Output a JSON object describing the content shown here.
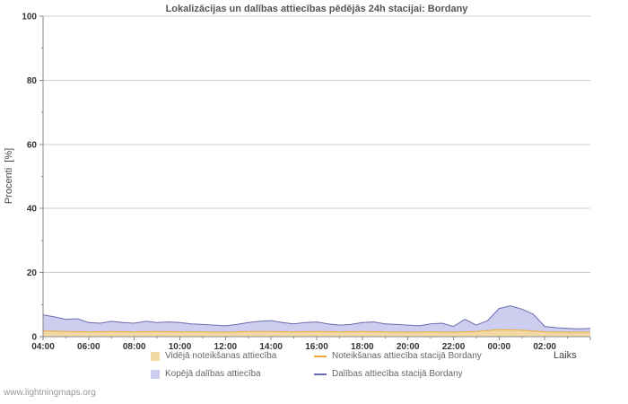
{
  "page": {
    "watermark": "www.lightningmaps.org"
  },
  "chart_data": {
    "type": "area",
    "title": "Lokalizācijas un dalības attiecības pēdējās 24h stacijai: Bordany",
    "xlabel": "Laiks",
    "ylabel": "Procenti  [%]",
    "ylim": [
      0,
      100
    ],
    "y_ticks": [
      0,
      20,
      40,
      60,
      80,
      100
    ],
    "x_labels": [
      "04:00",
      "06:00",
      "08:00",
      "10:00",
      "12:00",
      "14:00",
      "16:00",
      "18:00",
      "20:00",
      "22:00",
      "00:00",
      "02:00"
    ],
    "grid": true,
    "legend_position": "bottom",
    "colors": {
      "grid": "#cccccc",
      "axis": "#888888",
      "tick_text": "#333333",
      "title": "#555555",
      "axis_title": "#444444",
      "legend_text": "#666666",
      "watermark": "#999999"
    },
    "series": [
      {
        "id": "avg-detection-ratio",
        "name": "Vidējā noteikšanas attiecība",
        "type": "area",
        "color": "#f2d9a4",
        "values": [
          1.8,
          1.6,
          1.5,
          1.6,
          1.5,
          1.6,
          1.5,
          1.5,
          1.4,
          1.6,
          1.6,
          1.5,
          1.6,
          1.5,
          1.6,
          1.5,
          1.4,
          1.5,
          1.4,
          1.6,
          2.2,
          2.0,
          1.5,
          1.4,
          1.4
        ]
      },
      {
        "id": "detection-ratio-station",
        "name": "Noteikšanas attiecība stacijā Bordany",
        "type": "line",
        "color": "#edaa3c",
        "values": [
          1.8,
          1.6,
          1.5,
          1.6,
          1.5,
          1.6,
          1.5,
          1.5,
          1.4,
          1.6,
          1.6,
          1.5,
          1.6,
          1.5,
          1.6,
          1.5,
          1.4,
          1.5,
          1.4,
          1.6,
          2.2,
          2.0,
          1.5,
          1.4,
          1.4
        ]
      },
      {
        "id": "total-participation-ratio",
        "name": "Kopējā dalības attiecība",
        "type": "area",
        "color": "#cdcdf0",
        "values": [
          6.8,
          6.2,
          5.4,
          5.6,
          4.4,
          4.2,
          4.8,
          4.4,
          4.2,
          4.8,
          4.4,
          4.6,
          4.4,
          4.0,
          3.8,
          3.6,
          3.4,
          3.8,
          4.4,
          4.8,
          5.0,
          4.4,
          4.0,
          4.4,
          4.6,
          4.0,
          3.6,
          3.8,
          4.4,
          4.6,
          4.0,
          3.8,
          3.6,
          3.4,
          4.0,
          4.2,
          3.2,
          5.4,
          3.6,
          5.0,
          8.8,
          9.6,
          8.6,
          7.0,
          3.2,
          2.8,
          2.6,
          2.4,
          2.6
        ]
      },
      {
        "id": "participation-ratio-station",
        "name": "Dalības attiecība stacijā Bordany",
        "type": "line",
        "color": "#6b6bb0",
        "values": [
          6.8,
          6.2,
          5.4,
          5.6,
          4.4,
          4.2,
          4.8,
          4.4,
          4.2,
          4.8,
          4.4,
          4.6,
          4.4,
          4.0,
          3.8,
          3.6,
          3.4,
          3.8,
          4.4,
          4.8,
          5.0,
          4.4,
          4.0,
          4.4,
          4.6,
          4.0,
          3.6,
          3.8,
          4.4,
          4.6,
          4.0,
          3.8,
          3.6,
          3.4,
          4.0,
          4.2,
          3.2,
          5.4,
          3.6,
          5.0,
          8.8,
          9.6,
          8.6,
          7.0,
          3.2,
          2.8,
          2.6,
          2.4,
          2.6
        ]
      }
    ]
  }
}
